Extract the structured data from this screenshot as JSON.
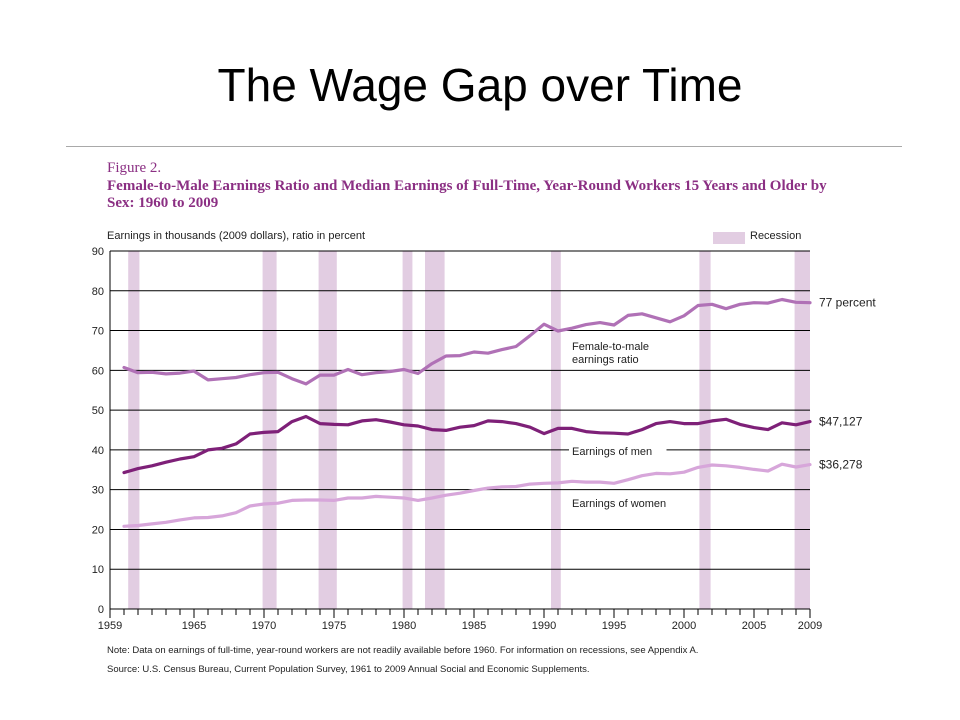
{
  "slide": {
    "title": "The Wage Gap over Time"
  },
  "figure": {
    "label": "Figure 2.",
    "title": "Female-to-Male Earnings Ratio and Median Earnings of Full-Time, Year-Round Workers 15 Years and Older by Sex: 1960 to 2009",
    "units_label": "Earnings in thousands (2009 dollars), ratio in percent",
    "legend_recession": "Recession",
    "note": "Note: Data on earnings of full-time, year-round workers are not readily available before 1960. For information on recessions, see Appendix A.",
    "source": "Source: U.S. Census Bureau, Current Population Survey, 1961 to 2009 Annual Social and Economic Supplements."
  },
  "colors": {
    "ratio": "#b071b6",
    "men": "#7e2078",
    "women": "#d7a6da",
    "recession": "#e2cde2",
    "grid": "#000000"
  },
  "chart_data": {
    "type": "line",
    "title": "Female-to-Male Earnings Ratio and Median Earnings of Full-Time, Year-Round Workers 15 Years and Older by Sex: 1960 to 2009",
    "ylabel": "Earnings in thousands (2009 dollars), ratio in percent",
    "xlabel": "",
    "xlim": [
      1959,
      2009
    ],
    "ylim": [
      0,
      90
    ],
    "grid": true,
    "x_ticks": [
      1959,
      1965,
      1970,
      1975,
      1980,
      1985,
      1990,
      1995,
      2000,
      2005,
      2009
    ],
    "y_ticks": [
      0,
      10,
      20,
      30,
      40,
      50,
      60,
      70,
      80,
      90
    ],
    "recessions": [
      [
        1960.3,
        1961.1
      ],
      [
        1969.9,
        1970.9
      ],
      [
        1973.9,
        1975.2
      ],
      [
        1979.9,
        1980.6
      ],
      [
        1981.5,
        1982.9
      ],
      [
        1990.5,
        1991.2
      ],
      [
        2001.1,
        2001.9
      ],
      [
        2007.9,
        2009
      ]
    ],
    "x": [
      1960,
      1961,
      1962,
      1963,
      1964,
      1965,
      1966,
      1967,
      1968,
      1969,
      1970,
      1971,
      1972,
      1973,
      1974,
      1975,
      1976,
      1977,
      1978,
      1979,
      1980,
      1981,
      1982,
      1983,
      1984,
      1985,
      1986,
      1987,
      1988,
      1989,
      1990,
      1991,
      1992,
      1993,
      1994,
      1995,
      1996,
      1997,
      1998,
      1999,
      2000,
      2001,
      2002,
      2003,
      2004,
      2005,
      2006,
      2007,
      2008,
      2009
    ],
    "series": [
      {
        "key": "ratio",
        "values": [
          60.7,
          59.4,
          59.5,
          59.1,
          59.3,
          59.8,
          57.6,
          57.9,
          58.2,
          58.9,
          59.4,
          59.5,
          57.9,
          56.6,
          58.8,
          58.8,
          60.2,
          58.9,
          59.4,
          59.7,
          60.2,
          59.2,
          61.7,
          63.6,
          63.7,
          64.6,
          64.3,
          65.2,
          66.0,
          68.7,
          71.6,
          69.9,
          70.6,
          71.5,
          72.0,
          71.4,
          73.8,
          74.2,
          73.2,
          72.2,
          73.7,
          76.3,
          76.6,
          75.5,
          76.6,
          77.0,
          76.9,
          77.8,
          77.1,
          77.0
        ],
        "color": "#b071b6"
      },
      {
        "key": "men",
        "values": [
          34.3,
          35.3,
          36.0,
          36.9,
          37.7,
          38.3,
          40.0,
          40.4,
          41.5,
          44.0,
          44.4,
          44.6,
          47.1,
          48.4,
          46.6,
          46.4,
          46.3,
          47.3,
          47.6,
          47.0,
          46.3,
          46.0,
          45.1,
          44.9,
          45.7,
          46.1,
          47.3,
          47.1,
          46.6,
          45.7,
          44.1,
          45.4,
          45.4,
          44.6,
          44.3,
          44.2,
          44.0,
          45.1,
          46.6,
          47.1,
          46.6,
          46.6,
          47.3,
          47.7,
          46.4,
          45.6,
          45.1,
          46.8,
          46.3,
          47.1
        ],
        "label": "$47,127",
        "color": "#7e2078"
      },
      {
        "key": "women",
        "values": [
          20.8,
          21.0,
          21.4,
          21.8,
          22.4,
          22.9,
          23.0,
          23.4,
          24.2,
          25.9,
          26.4,
          26.6,
          27.3,
          27.4,
          27.4,
          27.3,
          27.9,
          27.9,
          28.3,
          28.1,
          27.9,
          27.3,
          27.9,
          28.6,
          29.1,
          29.8,
          30.4,
          30.7,
          30.8,
          31.4,
          31.6,
          31.7,
          32.1,
          31.9,
          31.9,
          31.6,
          32.5,
          33.5,
          34.1,
          34.0,
          34.4,
          35.6,
          36.2,
          36.0,
          35.6,
          35.1,
          34.7,
          36.4,
          35.7,
          36.3
        ],
        "label": "$36,278",
        "color": "#d7a6da"
      }
    ],
    "end_labels": {
      "ratio": "77 percent",
      "men": "$47,127",
      "women": "$36,278"
    },
    "annotations": {
      "ratio": "Female-to-male earnings ratio",
      "men": "Earnings of men",
      "women": "Earnings of women"
    }
  }
}
